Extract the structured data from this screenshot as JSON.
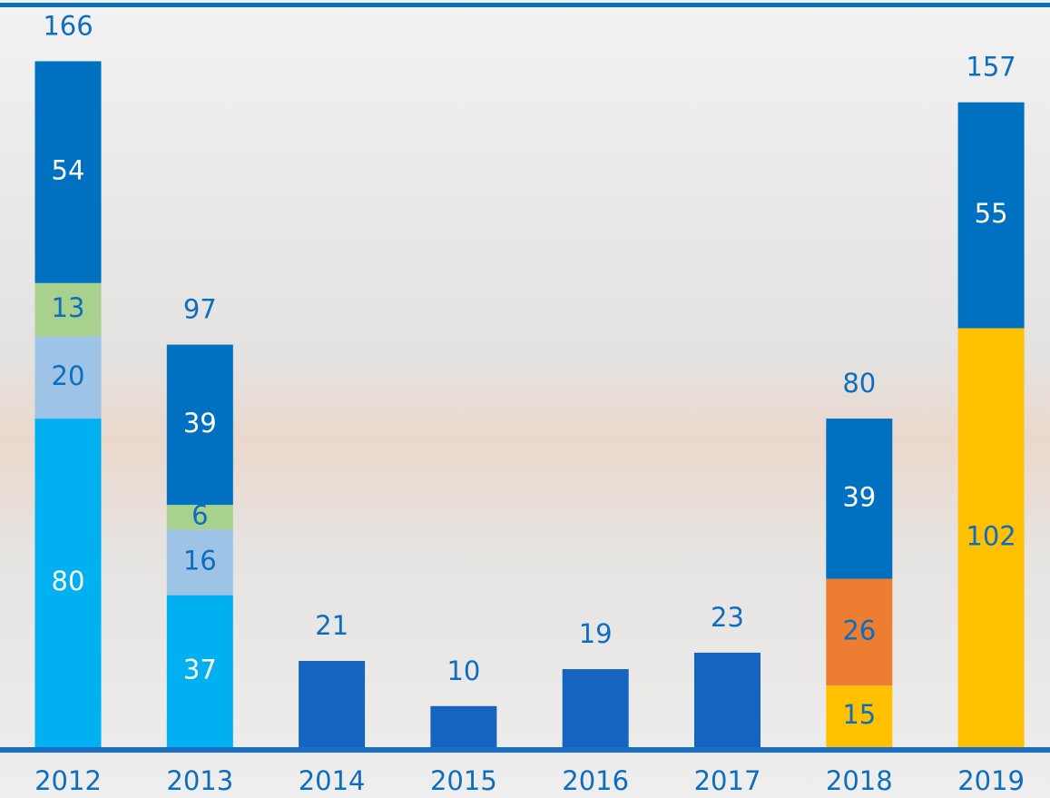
{
  "chart_data": {
    "type": "stacked-bar",
    "categories": [
      "2012",
      "2013",
      "2014",
      "2015",
      "2016",
      "2017",
      "2018",
      "2019"
    ],
    "series": [
      {
        "color": "#00b0f0",
        "label_color": "#ffffff",
        "values": [
          80,
          37,
          null,
          null,
          null,
          null,
          null,
          null
        ]
      },
      {
        "color": "#9dc3e6",
        "label_color": "#0d6ebf",
        "values": [
          20,
          16,
          null,
          null,
          null,
          null,
          null,
          null
        ]
      },
      {
        "color": "#a9d18e",
        "label_color": "#0d6ebf",
        "values": [
          13,
          6,
          null,
          null,
          null,
          null,
          null,
          null
        ]
      },
      {
        "color": "#ffc000",
        "label_color": "#0d6ebf",
        "values": [
          null,
          null,
          null,
          null,
          null,
          null,
          15,
          102
        ]
      },
      {
        "color": "#ed7d31",
        "label_color": "#0d6ebf",
        "values": [
          null,
          null,
          null,
          null,
          null,
          null,
          26,
          null
        ]
      },
      {
        "color": "#1565c0",
        "inner_labels": false,
        "values": [
          null,
          null,
          21,
          10,
          19,
          23,
          null,
          null
        ]
      },
      {
        "color": "#0070c0",
        "label_color": "#ffffff",
        "values": [
          54,
          39,
          null,
          null,
          null,
          null,
          39,
          55
        ]
      }
    ],
    "totals": [
      166,
      97,
      21,
      10,
      19,
      23,
      80,
      157
    ],
    "ylim": [
      0,
      166
    ],
    "text_color": "#0d6ebf"
  }
}
